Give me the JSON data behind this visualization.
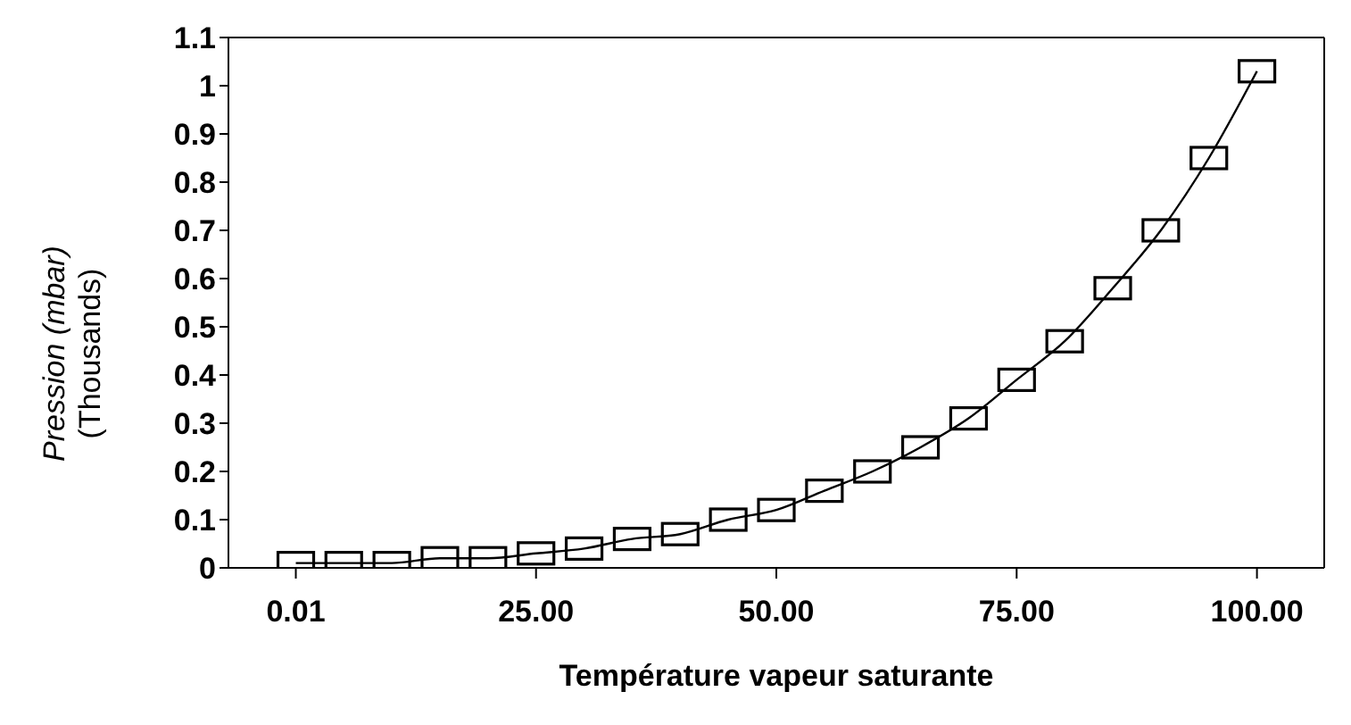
{
  "chart_data": {
    "type": "line",
    "xlabel": "Température vapeur saturante",
    "ylabel": "Pression (mbar)\n(Thousands)",
    "x": [
      0.01,
      5,
      10,
      15,
      20,
      25,
      30,
      35,
      40,
      45,
      50,
      55,
      60,
      65,
      70,
      75,
      80,
      85,
      90,
      95,
      100
    ],
    "series": [
      {
        "color": "#000000",
        "values": [
          0.01,
          0.01,
          0.01,
          0.02,
          0.02,
          0.03,
          0.04,
          0.06,
          0.07,
          0.1,
          0.12,
          0.16,
          0.2,
          0.25,
          0.31,
          0.39,
          0.47,
          0.58,
          0.7,
          0.85,
          1.03
        ]
      }
    ],
    "xlim": [
      -7,
      107
    ],
    "xticks": [
      0.01,
      {
        "value": 25,
        "label": "25.00"
      },
      {
        "value": 50,
        "label": "50.00"
      },
      {
        "value": 75,
        "label": "75.00"
      },
      {
        "value": 100,
        "label": "100.00"
      }
    ],
    "ylim": [
      0,
      1.1
    ],
    "yticks": [
      0,
      0.1,
      0.2,
      0.3,
      0.4,
      0.5,
      0.6,
      0.7,
      0.8,
      0.9,
      1,
      1.1
    ],
    "marker": "square",
    "line_style": "solid",
    "grid": false,
    "legend": false
  }
}
